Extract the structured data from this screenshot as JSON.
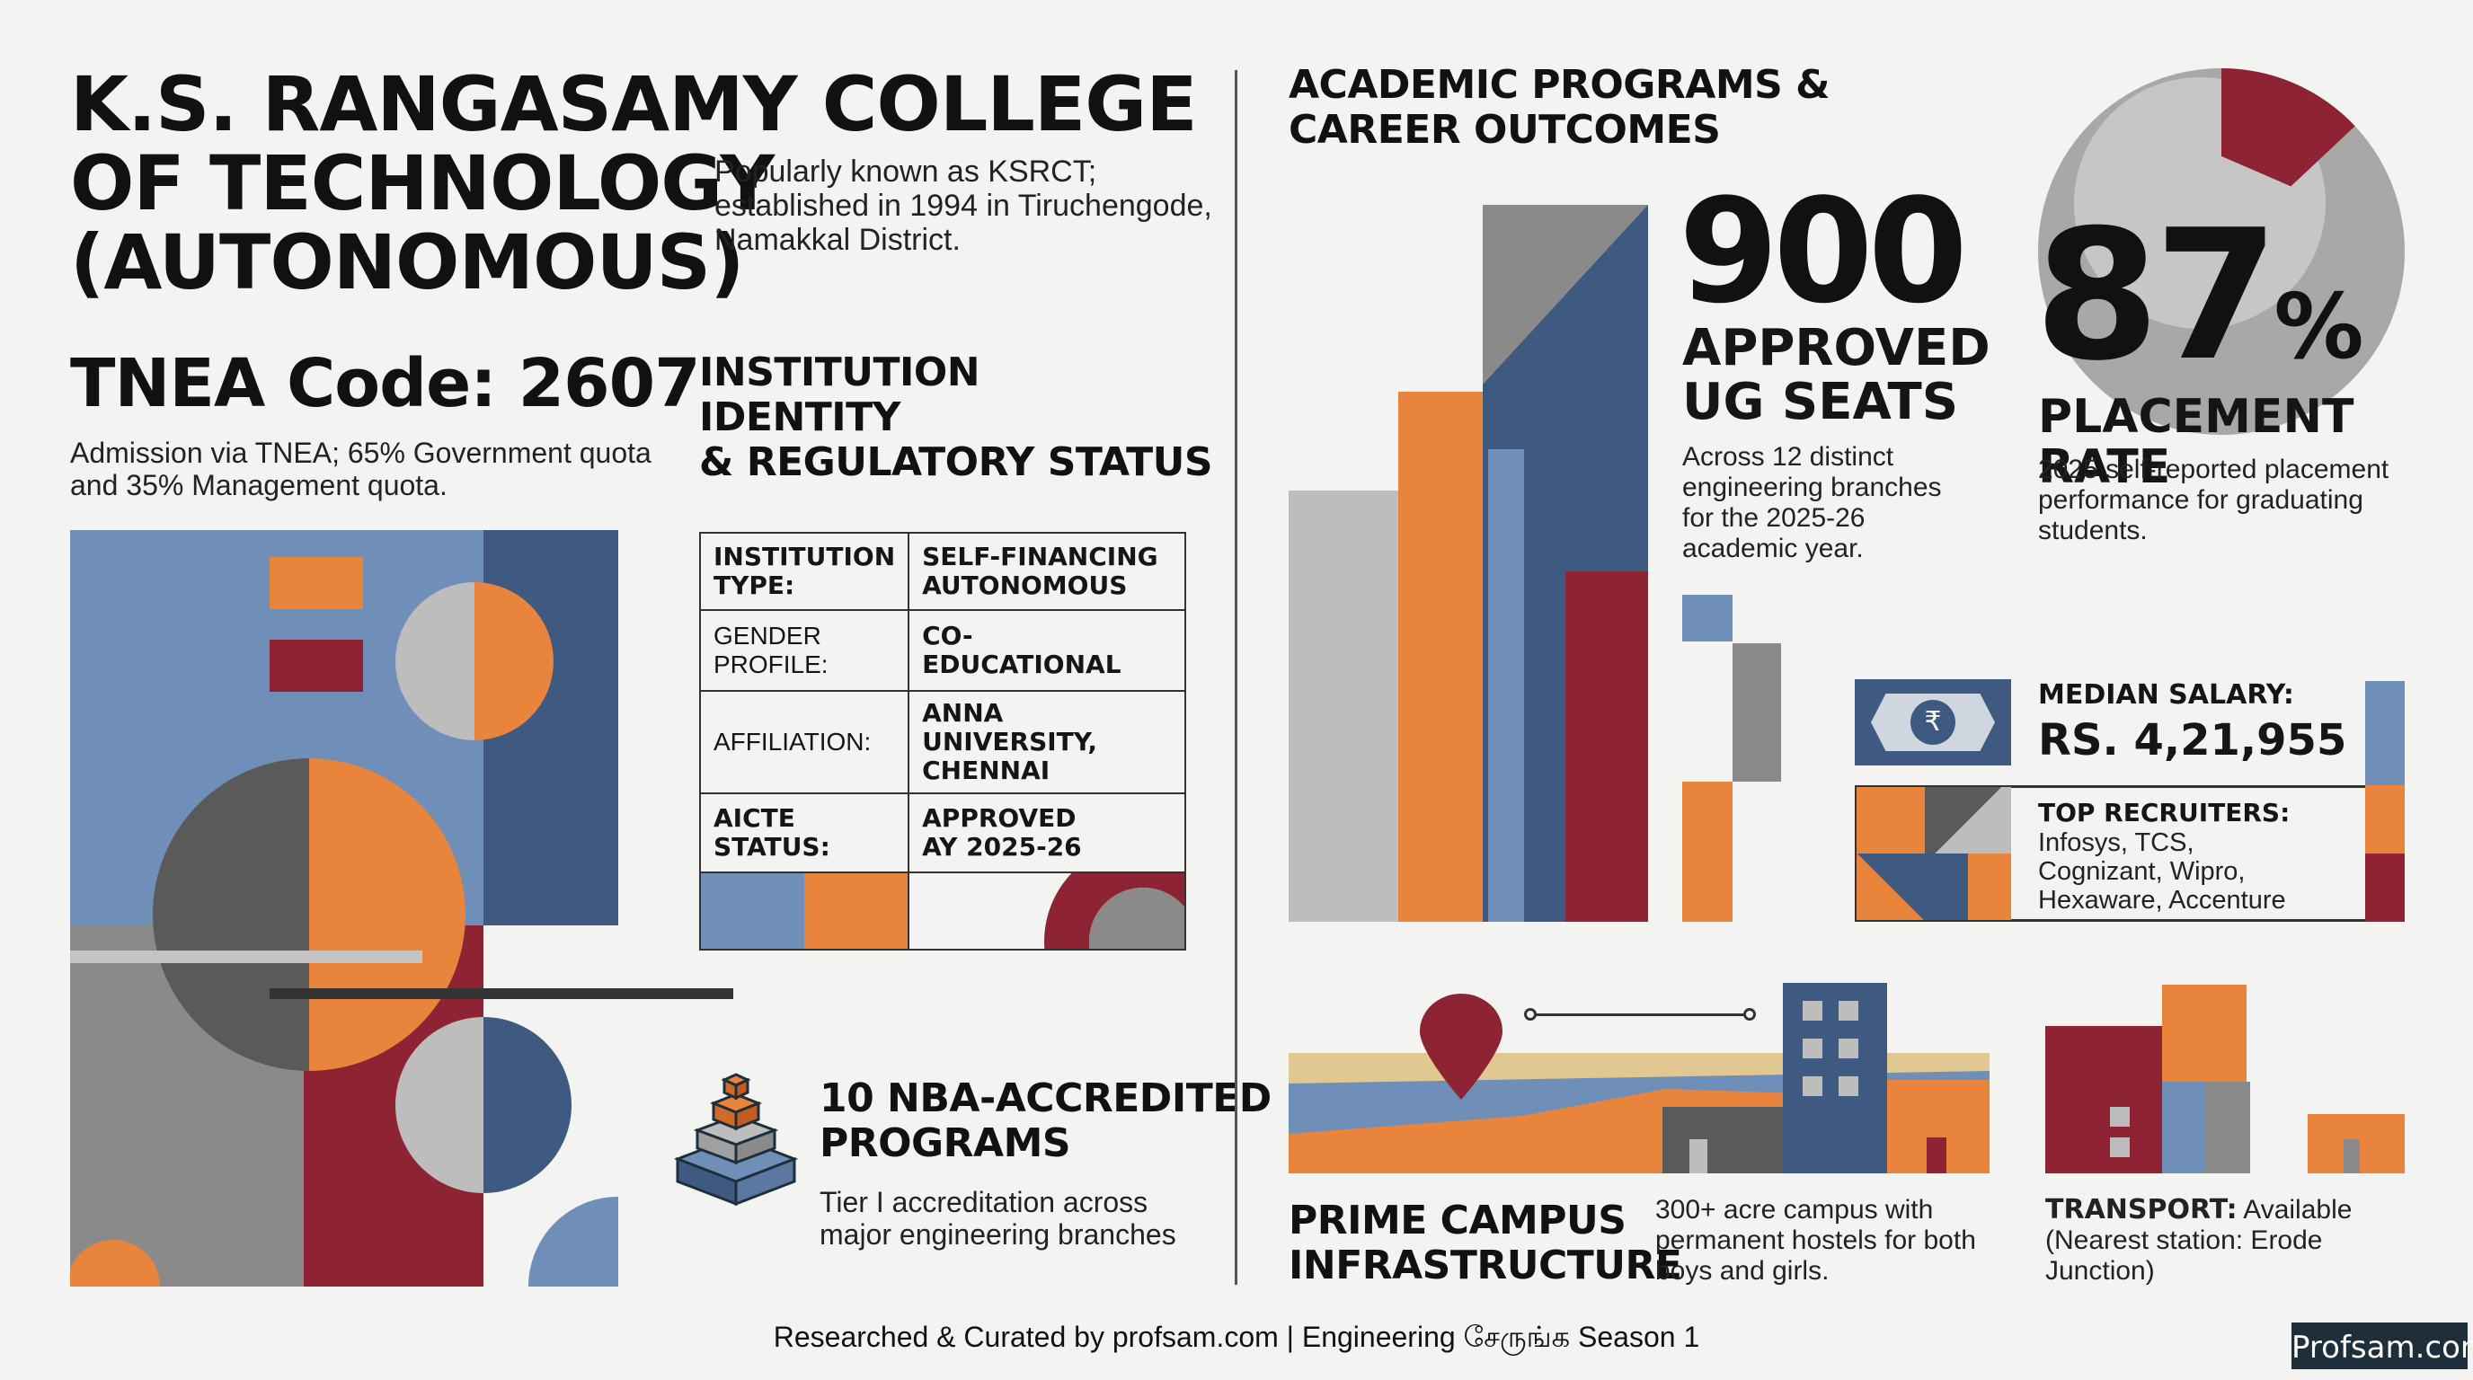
{
  "header": {
    "title_line1": "K.S. RANGASAMY COLLEGE",
    "title_line2": "OF TECHNOLOGY",
    "title_line3": "(AUTONOMOUS)",
    "subtitle_line1": "Popularly known as KSRCT;",
    "subtitle_line2": "established in 1994 in Tiruchengode,",
    "subtitle_line3": "Namakkal District."
  },
  "tnea": {
    "code": "TNEA Code: 2607",
    "desc_line1": "Admission via TNEA; 65% Government quota",
    "desc_line2": "and 35% Management quota."
  },
  "identity": {
    "heading_line1": "INSTITUTION",
    "heading_line2": "IDENTITY",
    "heading_line3": "& REGULATORY STATUS",
    "rows": [
      {
        "k1": "INSTITUTION",
        "k2": "TYPE:",
        "v1": "SELF-FINANCING",
        "v2": "AUTONOMOUS"
      },
      {
        "k1": "GENDER",
        "k2": "PROFILE:",
        "v1": "CO-EDUCATIONAL",
        "v2": ""
      },
      {
        "k1": "AFFILIATION:",
        "k2": "",
        "v1": "ANNA UNIVERSITY,",
        "v2": "CHENNAI"
      },
      {
        "k1": "AICTE",
        "k2": "STATUS:",
        "v1": "APPROVED",
        "v2": "AY 2025-26"
      }
    ]
  },
  "nba": {
    "heading_line1": "10 NBA-ACCREDITED",
    "heading_line2": "PROGRAMS",
    "desc_line1": "Tier I accreditation across",
    "desc_line2": "major engineering branches"
  },
  "academic": {
    "heading_line1": "ACADEMIC PROGRAMS &",
    "heading_line2": "CAREER OUTCOMES"
  },
  "seats": {
    "number": "900",
    "label_line1": "APPROVED",
    "label_line2": "UG SEATS",
    "desc_line1": "Across 12 distinct",
    "desc_line2": "engineering branches",
    "desc_line3": "for the 2025-26",
    "desc_line4": "academic year."
  },
  "placement": {
    "number": "87",
    "percent": "%",
    "rate_value": 87,
    "label": "PLACEMENT RATE",
    "desc_line1": "2025 self-reported placement",
    "desc_line2": "performance for graduating",
    "desc_line3": "students."
  },
  "salary": {
    "label": "MEDIAN SALARY:",
    "value": "RS. 4,21,955",
    "currency_symbol": "₹"
  },
  "recruiters": {
    "label": "TOP RECRUITERS:",
    "line1": "Infosys, TCS,",
    "line2": "Cognizant, Wipro,",
    "line3": "Hexaware, Accenture"
  },
  "campus": {
    "heading_line1": "PRIME CAMPUS",
    "heading_line2": "INFRASTRUCTURE",
    "desc_line1": "300+ acre campus with",
    "desc_line2": "permanent hostels for both",
    "desc_line3": "boys and girls."
  },
  "transport": {
    "label": "TRANSPORT:",
    "value": " Available",
    "line2": "(Nearest station: Erode",
    "line3": "Junction)"
  },
  "footer": {
    "text": "Researched & Curated by profsam.com | Engineering சேருங்க Season 1",
    "brand": "Profsam.com"
  },
  "colors": {
    "blue": "#6f8fb8",
    "navy": "#3e5a80",
    "orange": "#e8843c",
    "maroon": "#8e2433",
    "gray": "#8a8a8a",
    "lightgray": "#bdbdbd",
    "darkgray": "#5a5a5a"
  }
}
